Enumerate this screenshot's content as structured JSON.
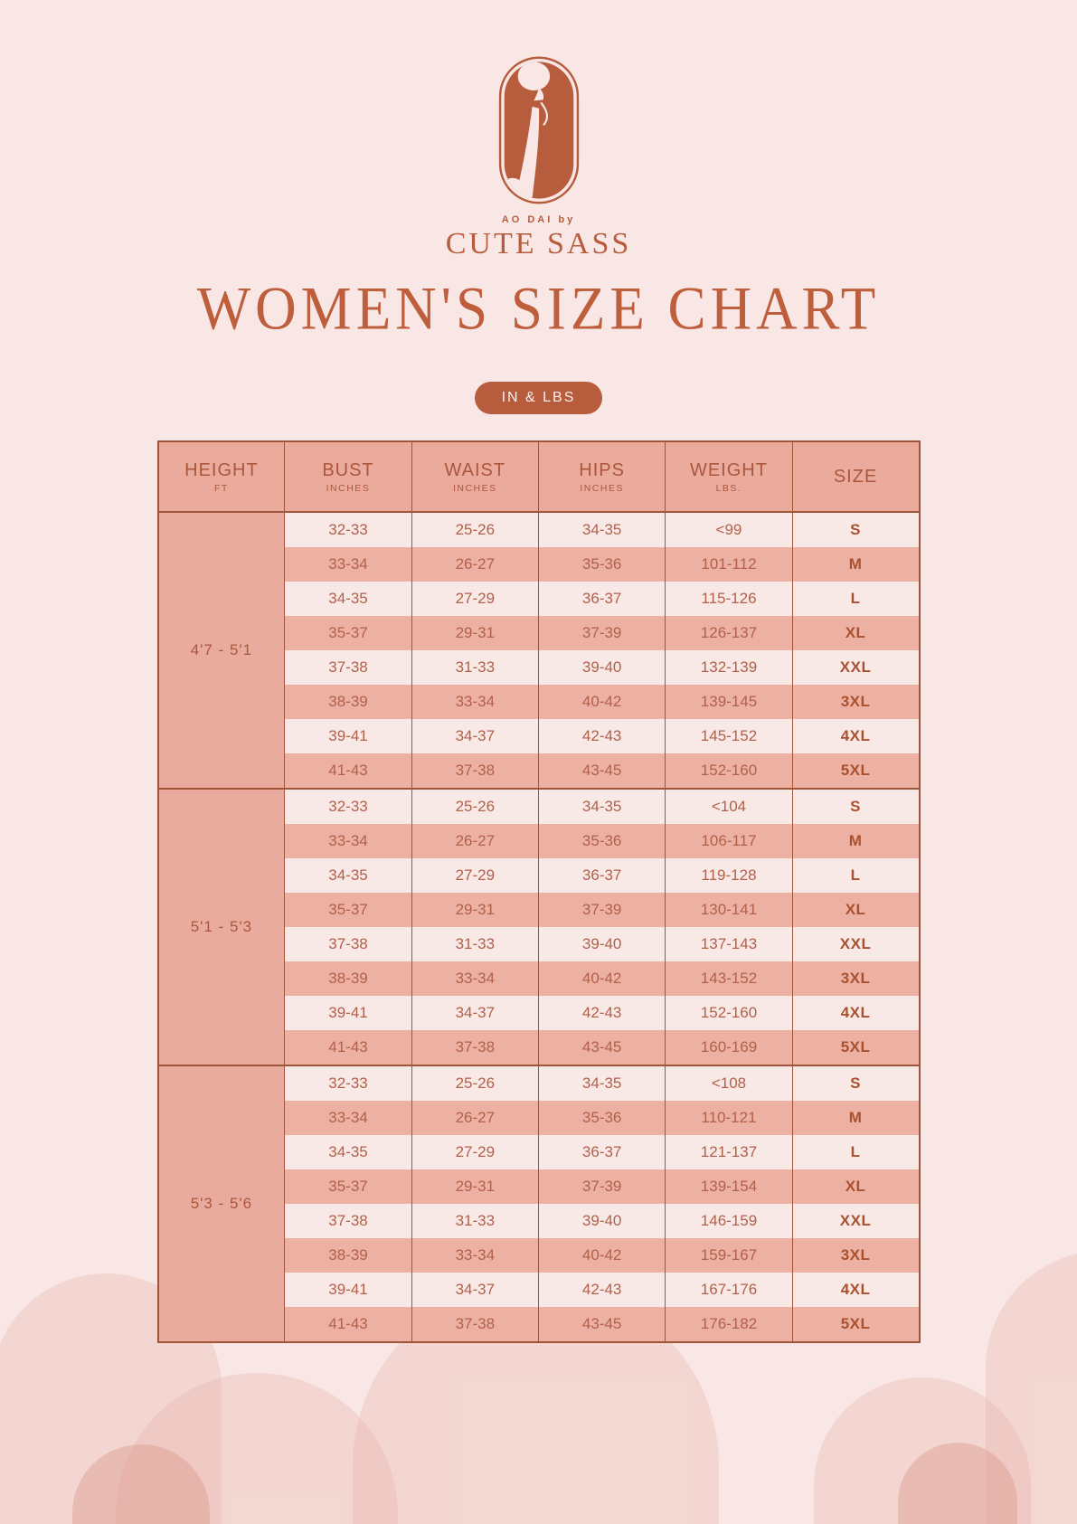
{
  "brand": {
    "tagline": "AO DAI by",
    "name": "CUTE SASS"
  },
  "page": {
    "title": "WOMEN'S SIZE CHART",
    "units_badge": "IN & LBS"
  },
  "table": {
    "headers": [
      {
        "label": "HEIGHT",
        "sub": "FT"
      },
      {
        "label": "BUST",
        "sub": "INCHES"
      },
      {
        "label": "WAIST",
        "sub": "INCHES"
      },
      {
        "label": "HIPS",
        "sub": "INCHES"
      },
      {
        "label": "WEIGHT",
        "sub": "LBS."
      },
      {
        "label": "SIZE",
        "sub": ""
      }
    ],
    "groups": [
      {
        "height_range": "4'7 - 5'1",
        "rows": [
          {
            "bust": "32-33",
            "waist": "25-26",
            "hips": "34-35",
            "weight": "<99",
            "size": "S"
          },
          {
            "bust": "33-34",
            "waist": "26-27",
            "hips": "35-36",
            "weight": "101-112",
            "size": "M"
          },
          {
            "bust": "34-35",
            "waist": "27-29",
            "hips": "36-37",
            "weight": "115-126",
            "size": "L"
          },
          {
            "bust": "35-37",
            "waist": "29-31",
            "hips": "37-39",
            "weight": "126-137",
            "size": "XL"
          },
          {
            "bust": "37-38",
            "waist": "31-33",
            "hips": "39-40",
            "weight": "132-139",
            "size": "XXL"
          },
          {
            "bust": "38-39",
            "waist": "33-34",
            "hips": "40-42",
            "weight": "139-145",
            "size": "3XL"
          },
          {
            "bust": "39-41",
            "waist": "34-37",
            "hips": "42-43",
            "weight": "145-152",
            "size": "4XL"
          },
          {
            "bust": "41-43",
            "waist": "37-38",
            "hips": "43-45",
            "weight": "152-160",
            "size": "5XL"
          }
        ]
      },
      {
        "height_range": "5'1 - 5'3",
        "rows": [
          {
            "bust": "32-33",
            "waist": "25-26",
            "hips": "34-35",
            "weight": "<104",
            "size": "S"
          },
          {
            "bust": "33-34",
            "waist": "26-27",
            "hips": "35-36",
            "weight": "106-117",
            "size": "M"
          },
          {
            "bust": "34-35",
            "waist": "27-29",
            "hips": "36-37",
            "weight": "119-128",
            "size": "L"
          },
          {
            "bust": "35-37",
            "waist": "29-31",
            "hips": "37-39",
            "weight": "130-141",
            "size": "XL"
          },
          {
            "bust": "37-38",
            "waist": "31-33",
            "hips": "39-40",
            "weight": "137-143",
            "size": "XXL"
          },
          {
            "bust": "38-39",
            "waist": "33-34",
            "hips": "40-42",
            "weight": "143-152",
            "size": "3XL"
          },
          {
            "bust": "39-41",
            "waist": "34-37",
            "hips": "42-43",
            "weight": "152-160",
            "size": "4XL"
          },
          {
            "bust": "41-43",
            "waist": "37-38",
            "hips": "43-45",
            "weight": "160-169",
            "size": "5XL"
          }
        ]
      },
      {
        "height_range": "5'3 - 5'6",
        "rows": [
          {
            "bust": "32-33",
            "waist": "25-26",
            "hips": "34-35",
            "weight": "<108",
            "size": "S"
          },
          {
            "bust": "33-34",
            "waist": "26-27",
            "hips": "35-36",
            "weight": "110-121",
            "size": "M"
          },
          {
            "bust": "34-35",
            "waist": "27-29",
            "hips": "36-37",
            "weight": "121-137",
            "size": "L"
          },
          {
            "bust": "35-37",
            "waist": "29-31",
            "hips": "37-39",
            "weight": "139-154",
            "size": "XL"
          },
          {
            "bust": "37-38",
            "waist": "31-33",
            "hips": "39-40",
            "weight": "146-159",
            "size": "XXL"
          },
          {
            "bust": "38-39",
            "waist": "33-34",
            "hips": "40-42",
            "weight": "159-167",
            "size": "3XL"
          },
          {
            "bust": "39-41",
            "waist": "34-37",
            "hips": "42-43",
            "weight": "167-176",
            "size": "4XL"
          },
          {
            "bust": "41-43",
            "waist": "37-38",
            "hips": "43-45",
            "weight": "176-182",
            "size": "5XL"
          }
        ]
      }
    ]
  },
  "colors": {
    "background": "#f8e7e4",
    "accent_terracotta": "#b85c3e",
    "title_text": "#bf5e3c",
    "table_border": "#a0543a",
    "header_fill": "#eaaa9c",
    "row_salmon": "#ecb1a3",
    "row_light": "#f9e9e6",
    "data_text": "#b2604a",
    "size_text": "#a9512f",
    "badge_text": "#fcefec"
  }
}
